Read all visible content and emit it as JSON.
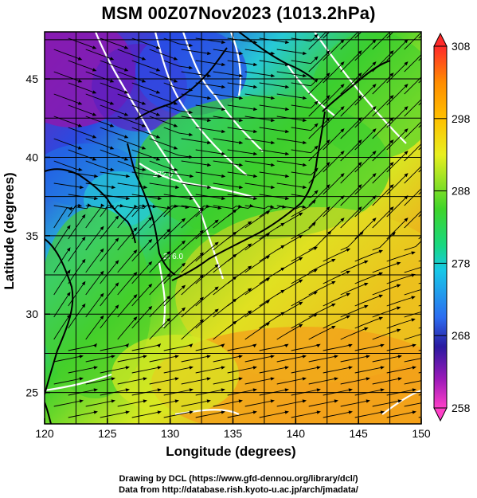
{
  "title": "MSM 00Z07Nov2023 (1013.2hPa)",
  "x_axis": {
    "label": "Longitude (degrees)",
    "min": 120,
    "max": 150,
    "ticks": [
      120,
      125,
      130,
      135,
      140,
      145,
      150
    ]
  },
  "y_axis": {
    "label": "Latitude  (degrees)",
    "min": 23,
    "max": 48,
    "ticks": [
      25,
      30,
      35,
      40,
      45
    ]
  },
  "colorbar": {
    "min": 258,
    "max": 308,
    "labels": [
      308,
      298,
      288,
      278,
      268,
      258
    ],
    "colors": [
      "#ff2a2a",
      "#ff8c00",
      "#ffd000",
      "#e8ef20",
      "#3fd42a",
      "#18d880",
      "#18c8e8",
      "#2c6cf0",
      "#2a1aa0",
      "#9b1ab8",
      "#ff40c8"
    ]
  },
  "field": {
    "contour_labels": [
      "272.0",
      "276.0"
    ],
    "colors": {
      "purple": "#8a2bb0",
      "blue": "#2a62e6",
      "cyan": "#27c9d6",
      "green": "#3ccf2e",
      "yellow": "#e2e820",
      "orange": "#f2a21a",
      "contour": "#ffffff",
      "streamline": "#000000",
      "coast": "#000000"
    }
  },
  "credits": {
    "line1": "Drawing by DCL (https://www.gfd-dennou.org/library/dcl/)",
    "line2": "Data from http://database.rish.kyoto-u.ac.jp/arch/jmadata/"
  }
}
